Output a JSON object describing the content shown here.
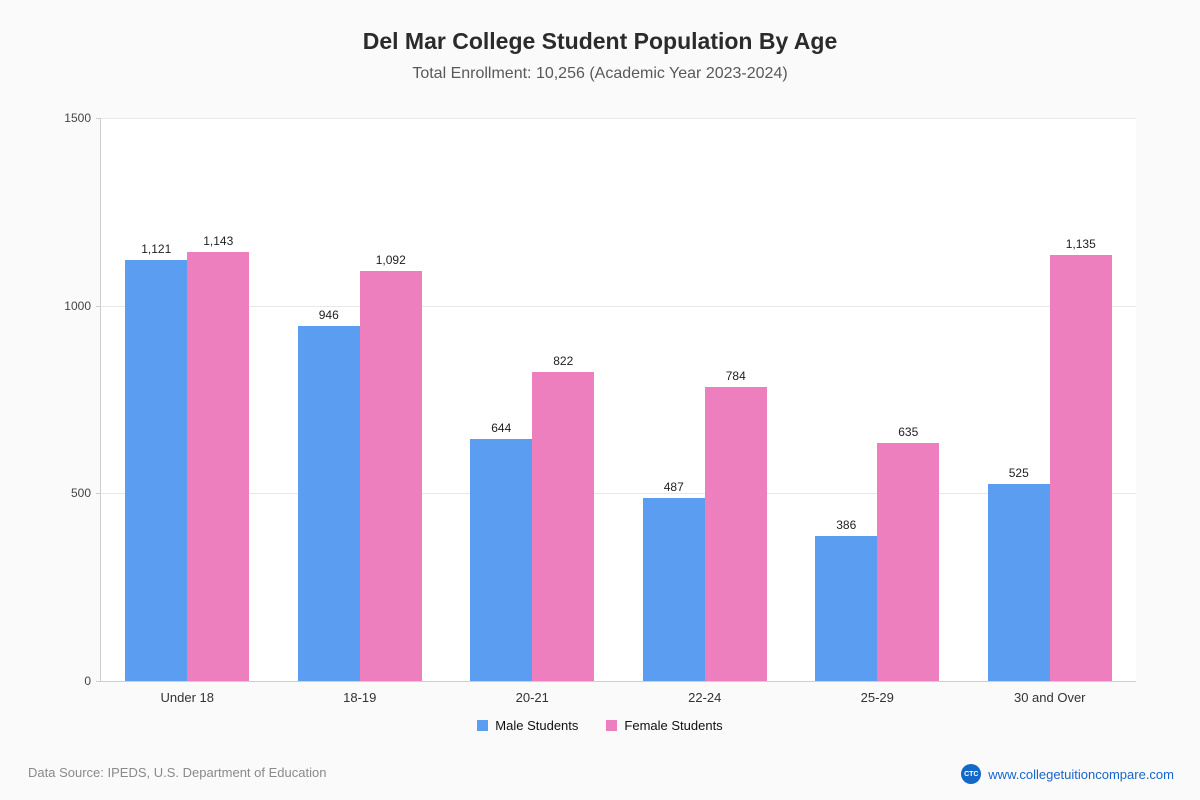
{
  "title": "Del Mar College Student Population By Age",
  "subtitle": "Total Enrollment: 10,256 (Academic Year 2023-2024)",
  "chart_data": {
    "type": "bar",
    "categories": [
      "Under 18",
      "18-19",
      "20-21",
      "22-24",
      "25-29",
      "30 and Over"
    ],
    "series": [
      {
        "name": "Male Students",
        "color": "#5b9df0",
        "values": [
          1121,
          946,
          644,
          487,
          386,
          525
        ],
        "labels": [
          "1,121",
          "946",
          "644",
          "487",
          "386",
          "525"
        ]
      },
      {
        "name": "Female Students",
        "color": "#ee7fbe",
        "values": [
          1143,
          1092,
          822,
          784,
          635,
          1135
        ],
        "labels": [
          "1,143",
          "1,092",
          "822",
          "784",
          "635",
          "1,135"
        ]
      }
    ],
    "ylim": [
      0,
      1500
    ],
    "yticks": [
      0,
      500,
      1000,
      1500
    ],
    "ytick_labels": [
      "0",
      "500",
      "1000",
      "1500"
    ],
    "grid": true,
    "legend_position": "bottom"
  },
  "footer": {
    "source": "Data Source: IPEDS, U.S. Department of Education",
    "website": "www.collegetuitioncompare.com",
    "logo_text": "CTC"
  }
}
